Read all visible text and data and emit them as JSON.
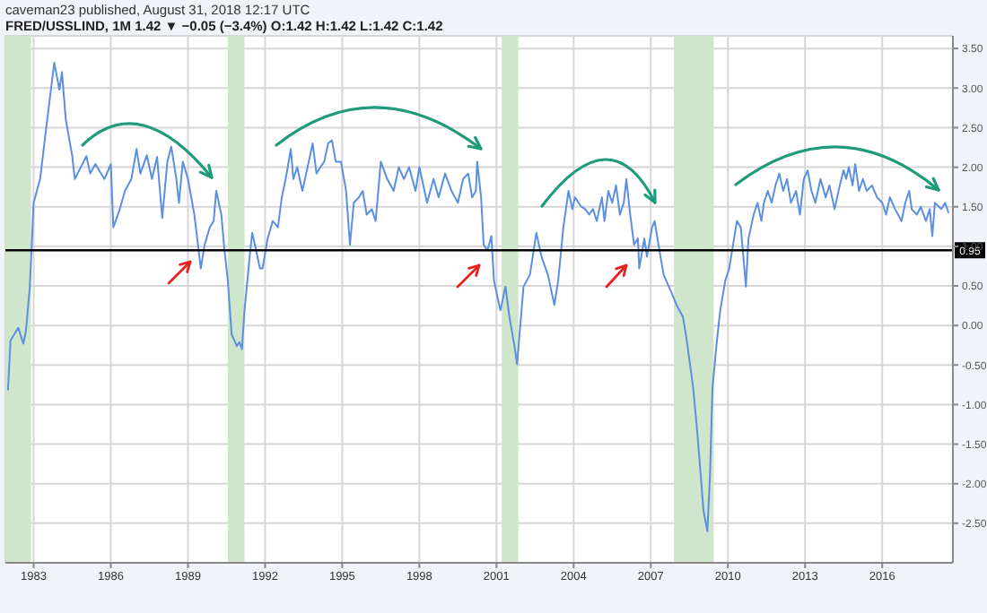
{
  "chart_data": {
    "type": "line",
    "subtitle": "caveman23 published, August 31, 2018 12:17 UTC",
    "title": "FRED/USSLIND, 1M 1.42 ▼ −0.05 (−3.4%) O:1.42 H:1.42 L:1.42 C:1.42",
    "x": [
      1982.0,
      1982.1,
      1982.4,
      1982.6,
      1982.7,
      1982.85,
      1983.0,
      1983.25,
      1983.5,
      1983.8,
      1984.0,
      1984.1,
      1984.25,
      1984.5,
      1984.6,
      1985.05,
      1985.2,
      1985.4,
      1985.75,
      1986.0,
      1986.1,
      1986.35,
      1986.55,
      1986.8,
      1987.0,
      1987.15,
      1987.4,
      1987.6,
      1987.8,
      1988.0,
      1988.2,
      1988.35,
      1988.55,
      1988.65,
      1988.8,
      1989.0,
      1989.25,
      1989.5,
      1989.65,
      1989.85,
      1990.0,
      1990.1,
      1990.3,
      1990.4,
      1990.55,
      1990.7,
      1990.9,
      1991.0,
      1991.1,
      1991.2,
      1991.4,
      1991.5,
      1991.65,
      1991.8,
      1991.9,
      1992.1,
      1992.3,
      1992.5,
      1992.65,
      1992.8,
      1993.0,
      1993.1,
      1993.25,
      1993.45,
      1993.7,
      1993.85,
      1994.0,
      1994.15,
      1994.3,
      1994.45,
      1994.6,
      1994.75,
      1994.95,
      1995.15,
      1995.3,
      1995.45,
      1995.65,
      1995.8,
      1995.95,
      1996.15,
      1996.3,
      1996.5,
      1996.75,
      1997.0,
      1997.2,
      1997.4,
      1997.6,
      1997.85,
      1998.0,
      1998.3,
      1998.55,
      1998.75,
      1999.0,
      1999.25,
      1999.5,
      1999.7,
      1999.9,
      2000.05,
      2000.2,
      2000.25,
      2000.4,
      2000.5,
      2000.65,
      2000.8,
      2000.9,
      2001.15,
      2001.35,
      2001.5,
      2001.7,
      2001.8,
      2002.05,
      2002.3,
      2002.55,
      2002.75,
      2003.0,
      2003.25,
      2003.4,
      2003.6,
      2003.8,
      2003.95,
      2004.05,
      2004.3,
      2004.45,
      2004.6,
      2004.75,
      2004.9,
      2005.1,
      2005.2,
      2005.35,
      2005.5,
      2005.65,
      2005.8,
      2005.95,
      2006.05,
      2006.2,
      2006.35,
      2006.5,
      2006.55,
      2006.75,
      2006.85,
      2007.05,
      2007.15,
      2007.3,
      2007.5,
      2007.8,
      2008.0,
      2008.25,
      2008.4,
      2008.65,
      2008.8,
      2008.95,
      2009.05,
      2009.2,
      2009.3,
      2009.4,
      2009.55,
      2009.7,
      2009.9,
      2010.05,
      2010.2,
      2010.35,
      2010.5,
      2010.7,
      2010.8,
      2011.0,
      2011.15,
      2011.3,
      2011.4,
      2011.55,
      2011.7,
      2011.85,
      2012.0,
      2012.15,
      2012.3,
      2012.45,
      2012.65,
      2012.8,
      2012.95,
      2013.1,
      2013.25,
      2013.4,
      2013.6,
      2013.8,
      2013.95,
      2014.15,
      2014.35,
      2014.5,
      2014.6,
      2014.7,
      2014.85,
      2014.95,
      2015.1,
      2015.25,
      2015.4,
      2015.6,
      2015.8,
      2016.0,
      2016.15,
      2016.3,
      2016.5,
      2016.75,
      2016.9,
      2017.05,
      2017.15,
      2017.35,
      2017.5,
      2017.7,
      2017.85,
      2017.95,
      2018.05,
      2018.3,
      2018.45,
      2018.58
    ],
    "series": [
      {
        "color": "#5b8fe0",
        "values": [
          -0.82,
          -0.19,
          -0.03,
          -0.23,
          -0.07,
          0.49,
          1.55,
          1.85,
          2.53,
          3.32,
          2.98,
          3.2,
          2.6,
          2.14,
          1.85,
          2.14,
          1.92,
          2.04,
          1.85,
          2.04,
          1.24,
          1.47,
          1.7,
          1.85,
          2.23,
          1.92,
          2.15,
          1.85,
          2.13,
          1.36,
          2.07,
          2.26,
          1.85,
          1.55,
          2.07,
          1.85,
          1.4,
          0.72,
          1.02,
          1.24,
          1.32,
          1.7,
          1.4,
          1.02,
          0.57,
          -0.11,
          -0.26,
          -0.21,
          -0.3,
          0.19,
          0.87,
          1.17,
          0.95,
          0.72,
          0.72,
          1.1,
          1.32,
          1.24,
          1.62,
          1.85,
          2.23,
          1.85,
          2.0,
          1.7,
          2.07,
          2.3,
          1.92,
          2.0,
          2.07,
          2.3,
          2.34,
          2.07,
          2.07,
          1.7,
          1.02,
          1.55,
          1.62,
          1.7,
          1.4,
          1.47,
          1.32,
          2.07,
          1.85,
          1.7,
          2.0,
          1.85,
          2.0,
          1.7,
          2.0,
          1.55,
          1.85,
          1.62,
          1.92,
          1.7,
          1.55,
          1.85,
          1.92,
          1.62,
          1.7,
          2.07,
          1.62,
          1.02,
          0.95,
          1.13,
          0.57,
          0.19,
          0.49,
          0.11,
          -0.26,
          -0.49,
          0.49,
          0.64,
          1.17,
          0.87,
          0.64,
          0.26,
          0.57,
          1.24,
          1.7,
          1.47,
          1.62,
          1.5,
          1.47,
          1.4,
          1.47,
          1.32,
          1.62,
          1.32,
          1.7,
          1.55,
          1.77,
          1.4,
          1.55,
          1.85,
          1.4,
          1.02,
          1.1,
          0.72,
          1.1,
          0.87,
          1.24,
          1.32,
          1.02,
          0.64,
          0.42,
          0.26,
          0.11,
          -0.19,
          -0.79,
          -1.32,
          -1.92,
          -2.34,
          -2.6,
          -1.92,
          -0.79,
          -0.26,
          0.19,
          0.57,
          0.72,
          1.02,
          1.32,
          1.24,
          0.49,
          1.1,
          1.4,
          1.55,
          1.32,
          1.55,
          1.7,
          1.55,
          1.77,
          1.92,
          1.7,
          1.85,
          1.55,
          1.7,
          1.4,
          1.85,
          1.96,
          1.7,
          1.55,
          1.85,
          1.62,
          1.77,
          1.47,
          1.77,
          1.96,
          1.85,
          2.0,
          1.77,
          2.04,
          1.7,
          1.85,
          1.7,
          1.77,
          1.62,
          1.55,
          1.4,
          1.62,
          1.47,
          1.32,
          1.55,
          1.7,
          1.47,
          1.4,
          1.5,
          1.32,
          1.47,
          1.13,
          1.55,
          1.47,
          1.55,
          1.42
        ]
      }
    ],
    "xlim": [
      1981.9,
      2018.75
    ],
    "xticks": [
      1983,
      1986,
      1989,
      1992,
      1995,
      1998,
      2001,
      2004,
      2007,
      2010,
      2013,
      2016
    ],
    "ylim": [
      -3.0,
      3.66
    ],
    "yticks": [
      {
        "value": -2.5,
        "label": "-2.50"
      },
      {
        "value": -2,
        "label": "-2.00"
      },
      {
        "value": -1.5,
        "label": "-1.50"
      },
      {
        "value": -1,
        "label": "-1.00"
      },
      {
        "value": -0.5,
        "label": "-0.50"
      },
      {
        "value": 0,
        "label": "0.00"
      },
      {
        "value": 0.5,
        "label": "0.50"
      },
      {
        "value": 1,
        "label": "1.00"
      },
      {
        "value": 1.5,
        "label": "1.50"
      },
      {
        "value": 2,
        "label": "2.00"
      },
      {
        "value": 2.5,
        "label": "2.50"
      },
      {
        "value": 3,
        "label": "3.00"
      },
      {
        "value": 3.5,
        "label": "3.50"
      }
    ],
    "grid": true,
    "bands": [
      {
        "axis": "x",
        "from": 1981.9,
        "to": 1982.9,
        "color": "#cfe6cd"
      },
      {
        "axis": "x",
        "from": 1990.55,
        "to": 1991.2,
        "color": "#cfe6cd"
      },
      {
        "axis": "x",
        "from": 2001.2,
        "to": 2001.85,
        "color": "#cfe6cd"
      },
      {
        "axis": "x",
        "from": 2007.9,
        "to": 2009.45,
        "color": "#cfe6cd"
      }
    ],
    "ref_lines": [
      {
        "axis": "y",
        "value": 0.95,
        "label": "0.95",
        "color": "#000000"
      }
    ]
  }
}
